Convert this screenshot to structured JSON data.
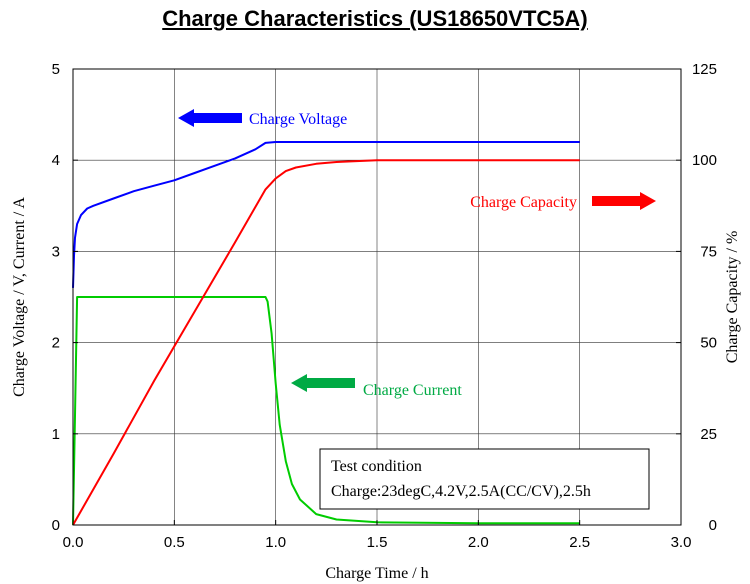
{
  "chart_data": {
    "type": "line",
    "title": "Charge Characteristics (US18650VTC5A)",
    "xlabel": "Charge Time / h",
    "ylabel_left": "Charge Voltage / V, Current / A",
    "ylabel_right": "Charge Capacity / %",
    "xlim": [
      0,
      3
    ],
    "ylim_left": [
      0,
      5
    ],
    "ylim_right": [
      0,
      125
    ],
    "x_ticks": [
      "0.0",
      "0.5",
      "1.0",
      "1.5",
      "2.0",
      "2.5",
      "3.0"
    ],
    "y_left_ticks": [
      "0",
      "1",
      "2",
      "3",
      "4",
      "5"
    ],
    "y_right_ticks": [
      "0",
      "25",
      "50",
      "75",
      "100",
      "125"
    ],
    "grid": true,
    "series": [
      {
        "name": "Charge Voltage",
        "axis": "left",
        "color": "#0000ff",
        "x": [
          0,
          0.005,
          0.01,
          0.02,
          0.04,
          0.07,
          0.1,
          0.2,
          0.3,
          0.4,
          0.5,
          0.6,
          0.7,
          0.8,
          0.9,
          0.95,
          1.0,
          1.5,
          2.0,
          2.5
        ],
        "y": [
          2.6,
          2.95,
          3.15,
          3.3,
          3.4,
          3.47,
          3.5,
          3.58,
          3.66,
          3.72,
          3.78,
          3.86,
          3.94,
          4.02,
          4.12,
          4.19,
          4.2,
          4.2,
          4.2,
          4.2
        ]
      },
      {
        "name": "Charge Current",
        "axis": "left",
        "color": "#00cc00",
        "x": [
          0,
          0.01,
          0.02,
          0.95,
          0.96,
          0.98,
          1.0,
          1.02,
          1.05,
          1.08,
          1.12,
          1.2,
          1.3,
          1.5,
          2.0,
          2.5
        ],
        "y": [
          0,
          1.2,
          2.5,
          2.5,
          2.45,
          2.1,
          1.55,
          1.1,
          0.7,
          0.45,
          0.28,
          0.12,
          0.06,
          0.03,
          0.02,
          0.02
        ]
      },
      {
        "name": "Charge Capacity",
        "axis": "right",
        "color": "#ff0000",
        "x": [
          0,
          0.2,
          0.4,
          0.6,
          0.8,
          0.95,
          1.0,
          1.05,
          1.1,
          1.2,
          1.3,
          1.5,
          2.0,
          2.5
        ],
        "y": [
          0,
          19.5,
          39.5,
          58.5,
          77.5,
          92,
          95,
          97,
          98,
          99,
          99.5,
          100,
          100,
          100
        ]
      }
    ],
    "annotation": {
      "line1": "Test condition",
      "line2": "Charge:23degC,4.2V,2.5A(CC/CV),2.5h"
    },
    "arrow_colors": {
      "voltage": "#0000ff",
      "current": "#00aa44",
      "capacity": "#ff0000"
    }
  }
}
